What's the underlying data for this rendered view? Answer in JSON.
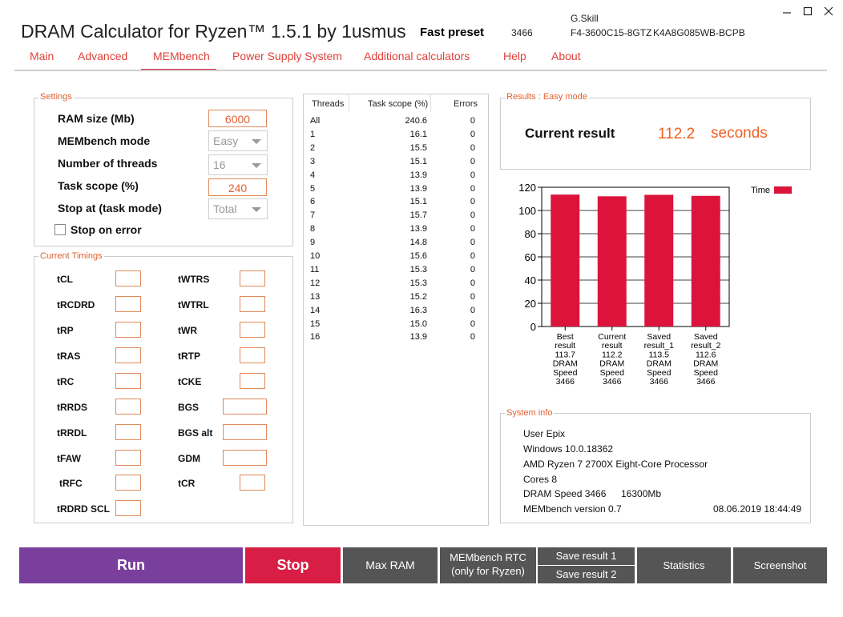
{
  "app": {
    "title": "DRAM Calculator for Ryzen™ 1.5.1 by 1usmus",
    "preset_label": "Fast preset",
    "preset_value": "3466",
    "memory_brand": "G.Skill",
    "memory_part": "F4-3600C15-8GTZ",
    "memory_chip": "K4A8G085WB-BCPB"
  },
  "nav": [
    {
      "label": "Main",
      "active": false
    },
    {
      "label": "Advanced",
      "active": false
    },
    {
      "label": "MEMbench",
      "active": true
    },
    {
      "label": "Power Supply System",
      "active": false
    },
    {
      "label": "Additional calculators",
      "active": false
    },
    {
      "label": "Help",
      "active": false
    },
    {
      "label": "About",
      "active": false
    }
  ],
  "settings": {
    "title": "Settings",
    "ram_size_label": "RAM size (Mb)",
    "ram_size_value": "6000",
    "mode_label": "MEMbench mode",
    "mode_value": "Easy",
    "threads_label": "Number of threads",
    "threads_value": "16",
    "scope_label": "Task scope (%)",
    "scope_value": "240",
    "stop_at_label": "Stop at (task mode)",
    "stop_at_value": "Total",
    "stop_on_error_label": "Stop on error",
    "stop_on_error_checked": false
  },
  "timings": {
    "title": "Current Timings",
    "left": [
      "tCL",
      "tRCDRD",
      "tRP",
      "tRAS",
      "tRC",
      "tRRDS",
      "tRRDL",
      "tFAW",
      "tRFC",
      "tRDRD SCL"
    ],
    "right": [
      "tWTRS",
      "tWTRL",
      "tWR",
      "tRTP",
      "tCKE",
      "BGS",
      "BGS alt",
      "GDM",
      "tCR"
    ]
  },
  "threads_table": {
    "headers": [
      "Threads",
      "Task scope (%)",
      "Errors"
    ],
    "rows": [
      [
        "All",
        "240.6",
        "0"
      ],
      [
        "1",
        "16.1",
        "0"
      ],
      [
        "2",
        "15.5",
        "0"
      ],
      [
        "3",
        "15.1",
        "0"
      ],
      [
        "4",
        "13.9",
        "0"
      ],
      [
        "5",
        "13.9",
        "0"
      ],
      [
        "6",
        "15.1",
        "0"
      ],
      [
        "7",
        "15.7",
        "0"
      ],
      [
        "8",
        "13.9",
        "0"
      ],
      [
        "9",
        "14.8",
        "0"
      ],
      [
        "10",
        "15.6",
        "0"
      ],
      [
        "11",
        "15.3",
        "0"
      ],
      [
        "12",
        "15.3",
        "0"
      ],
      [
        "13",
        "15.2",
        "0"
      ],
      [
        "14",
        "16.3",
        "0"
      ],
      [
        "15",
        "15.0",
        "0"
      ],
      [
        "16",
        "13.9",
        "0"
      ]
    ]
  },
  "results": {
    "title": "Results : Easy mode",
    "current_label": "Current result",
    "current_value": "112.2",
    "unit": "seconds"
  },
  "chart_data": {
    "type": "bar",
    "legend": "Time",
    "legend_position": "top-right",
    "ylim": [
      0,
      120
    ],
    "yticks": [
      0,
      20,
      40,
      60,
      80,
      100,
      120
    ],
    "grid": true,
    "color": "#dc143c",
    "categories": [
      [
        "Best",
        "result",
        "113.7",
        "DRAM",
        "Speed",
        "3466"
      ],
      [
        "Current",
        "result",
        "112.2",
        "DRAM",
        "Speed",
        "3466"
      ],
      [
        "Saved",
        "result_1",
        "113.5",
        "DRAM",
        "Speed",
        "3466"
      ],
      [
        "Saved",
        "result_2",
        "112.6",
        "DRAM",
        "Speed",
        "3466"
      ]
    ],
    "values": [
      113.7,
      112.2,
      113.5,
      112.6
    ]
  },
  "system_info": {
    "title": "System info",
    "user": "User Epix",
    "os": "Windows 10.0.18362",
    "cpu": "AMD Ryzen 7 2700X Eight-Core Processor",
    "cores": "Cores 8",
    "dram_speed": "DRAM Speed 3466",
    "memory": "16300Mb",
    "version": "MEMbench version 0.7",
    "datetime": "08.06.2019 18:44:49"
  },
  "buttons": {
    "run": "Run",
    "stop": "Stop",
    "max_ram": "Max RAM",
    "rtc_line1": "MEMbench RTC",
    "rtc_line2": "(only for Ryzen)",
    "save1": "Save result 1",
    "save2": "Save result 2",
    "statistics": "Statistics",
    "screenshot": "Screenshot"
  },
  "colors": {
    "run": "#7a3f9d",
    "stop": "#d81e44",
    "gray": "#555555",
    "accent": "#e0403a"
  }
}
